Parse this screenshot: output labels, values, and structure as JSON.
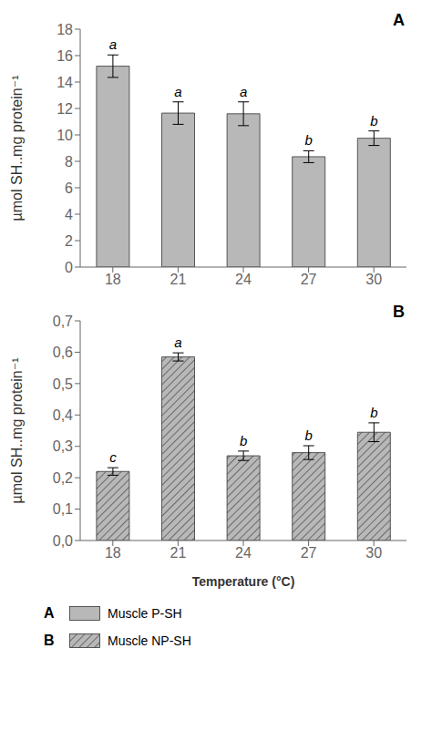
{
  "chart_data": [
    {
      "type": "bar",
      "title": "A",
      "categories": [
        "18",
        "21",
        "24",
        "27",
        "30"
      ],
      "series": [
        {
          "name": "Muscle P-SH",
          "color": "#b8b8b8",
          "values": [
            15.2,
            11.65,
            11.6,
            8.35,
            9.75
          ],
          "errors": [
            0.85,
            0.85,
            0.9,
            0.45,
            0.55
          ]
        }
      ],
      "annotations": [
        "a",
        "a",
        "a",
        "b",
        "b"
      ],
      "ylabel": "µmol SH..mg protein⁻¹",
      "ylim": [
        0,
        18
      ],
      "yticks": [
        0,
        2,
        4,
        6,
        8,
        10,
        12,
        14,
        16,
        18
      ]
    },
    {
      "type": "bar",
      "title": "B",
      "categories": [
        "18",
        "21",
        "24",
        "27",
        "30"
      ],
      "series": [
        {
          "name": "Muscle NP-SH",
          "color": "#b8b8b8",
          "values": [
            0.22,
            0.585,
            0.27,
            0.28,
            0.345
          ],
          "errors": [
            0.012,
            0.013,
            0.015,
            0.022,
            0.03
          ]
        }
      ],
      "annotations": [
        "c",
        "a",
        "b",
        "b",
        "b"
      ],
      "xlabel": "Temperature (°C)",
      "ylabel": "µmol SH..mg protein⁻¹",
      "ylim": [
        0,
        0.7
      ],
      "yticks": [
        {
          "value": 0,
          "label": "0,0"
        },
        {
          "value": 0.1,
          "label": "0,1"
        },
        {
          "value": 0.2,
          "label": "0,2"
        },
        {
          "value": 0.3,
          "label": "0,3"
        },
        {
          "value": 0.4,
          "label": "0,4"
        },
        {
          "value": 0.5,
          "label": "0,5"
        },
        {
          "value": 0.6,
          "label": "0,6"
        },
        {
          "value": 0.7,
          "label": "0,7"
        }
      ]
    }
  ]
}
